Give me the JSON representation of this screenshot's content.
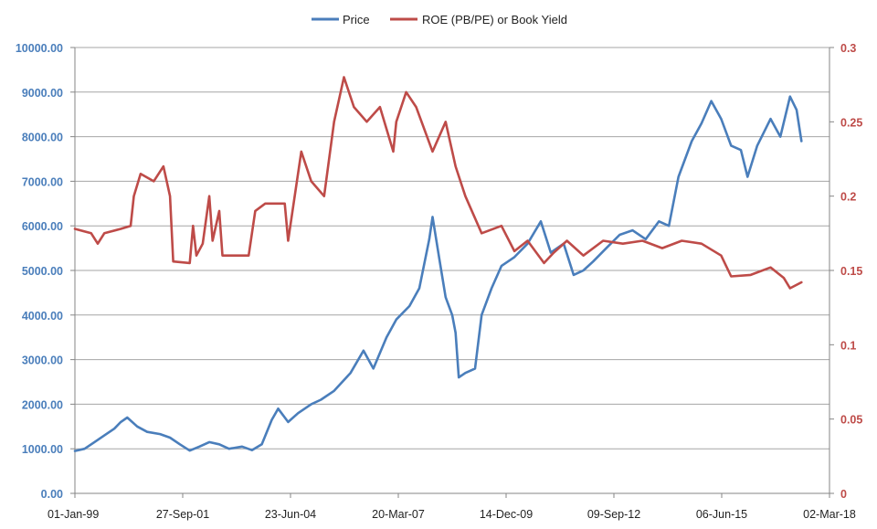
{
  "chart_data": {
    "type": "line",
    "title": "",
    "xlabel": "",
    "ylabel": "",
    "grid": true,
    "legend_position": "top",
    "x_range": [
      "1999-01-01",
      "2018-03-02"
    ],
    "x_tick_labels": [
      "01-Jan-99",
      "27-Sep-01",
      "23-Jun-04",
      "20-Mar-07",
      "14-Dec-09",
      "09-Sep-12",
      "06-Jun-15",
      "02-Mar-18"
    ],
    "y_left": {
      "range": [
        0,
        10000
      ],
      "tick_labels": [
        "0.00",
        "1000.00",
        "2000.00",
        "3000.00",
        "4000.00",
        "5000.00",
        "6000.00",
        "7000.00",
        "8000.00",
        "9000.00",
        "10000.00"
      ],
      "color": "#4a7ebb"
    },
    "y_right": {
      "range": [
        0,
        0.3
      ],
      "tick_labels": [
        "0",
        "0.05",
        "0.1",
        "0.15",
        "0.2",
        "0.25",
        "0.3"
      ],
      "color": "#be4b48"
    },
    "series": [
      {
        "name": "Price",
        "axis": "left",
        "color": "#4a7ebb",
        "points": [
          [
            "1999-01-01",
            950
          ],
          [
            "1999-04-01",
            1000
          ],
          [
            "1999-07-01",
            1150
          ],
          [
            "1999-10-01",
            1300
          ],
          [
            "2000-01-01",
            1450
          ],
          [
            "2000-03-01",
            1600
          ],
          [
            "2000-05-01",
            1700
          ],
          [
            "2000-08-01",
            1500
          ],
          [
            "2000-11-01",
            1380
          ],
          [
            "2001-03-01",
            1330
          ],
          [
            "2001-06-01",
            1250
          ],
          [
            "2001-09-01",
            1100
          ],
          [
            "2001-12-01",
            960
          ],
          [
            "2002-03-01",
            1050
          ],
          [
            "2002-06-01",
            1150
          ],
          [
            "2002-09-01",
            1100
          ],
          [
            "2002-12-01",
            1000
          ],
          [
            "2003-04-01",
            1050
          ],
          [
            "2003-07-01",
            970
          ],
          [
            "2003-10-01",
            1100
          ],
          [
            "2004-01-01",
            1650
          ],
          [
            "2004-03-01",
            1900
          ],
          [
            "2004-06-01",
            1600
          ],
          [
            "2004-09-01",
            1800
          ],
          [
            "2005-01-01",
            2000
          ],
          [
            "2005-04-01",
            2100
          ],
          [
            "2005-08-01",
            2300
          ],
          [
            "2006-01-01",
            2700
          ],
          [
            "2006-05-01",
            3200
          ],
          [
            "2006-08-01",
            2800
          ],
          [
            "2006-12-01",
            3500
          ],
          [
            "2007-03-01",
            3900
          ],
          [
            "2007-07-01",
            4200
          ],
          [
            "2007-10-01",
            4600
          ],
          [
            "2008-01-01",
            5700
          ],
          [
            "2008-02-01",
            6200
          ],
          [
            "2008-04-01",
            5300
          ],
          [
            "2008-06-01",
            4400
          ],
          [
            "2008-08-01",
            4000
          ],
          [
            "2008-09-01",
            3600
          ],
          [
            "2008-10-01",
            2600
          ],
          [
            "2008-12-01",
            2700
          ],
          [
            "2009-03-01",
            2800
          ],
          [
            "2009-05-01",
            4000
          ],
          [
            "2009-08-01",
            4600
          ],
          [
            "2009-11-01",
            5100
          ],
          [
            "2010-03-01",
            5300
          ],
          [
            "2010-07-01",
            5600
          ],
          [
            "2010-11-01",
            6100
          ],
          [
            "2011-02-01",
            5400
          ],
          [
            "2011-06-01",
            5600
          ],
          [
            "2011-09-01",
            4900
          ],
          [
            "2011-12-01",
            5000
          ],
          [
            "2012-03-01",
            5200
          ],
          [
            "2012-07-01",
            5500
          ],
          [
            "2012-11-01",
            5800
          ],
          [
            "2013-03-01",
            5900
          ],
          [
            "2013-07-01",
            5700
          ],
          [
            "2013-11-01",
            6100
          ],
          [
            "2014-02-01",
            6000
          ],
          [
            "2014-05-01",
            7100
          ],
          [
            "2014-09-01",
            7900
          ],
          [
            "2014-12-01",
            8300
          ],
          [
            "2015-03-01",
            8800
          ],
          [
            "2015-06-01",
            8400
          ],
          [
            "2015-09-01",
            7800
          ],
          [
            "2015-12-01",
            7700
          ],
          [
            "2016-02-01",
            7100
          ],
          [
            "2016-05-01",
            7800
          ],
          [
            "2016-09-01",
            8400
          ],
          [
            "2016-12-01",
            8000
          ],
          [
            "2017-03-01",
            8900
          ],
          [
            "2017-05-01",
            8600
          ],
          [
            "2017-06-15",
            7900
          ]
        ]
      },
      {
        "name": "ROE (PB/PE) or Book Yield",
        "axis": "right",
        "color": "#be4b48",
        "points": [
          [
            "1999-01-01",
            0.178
          ],
          [
            "1999-06-01",
            0.175
          ],
          [
            "1999-08-01",
            0.168
          ],
          [
            "1999-10-01",
            0.175
          ],
          [
            "2000-03-01",
            0.178
          ],
          [
            "2000-06-01",
            0.18
          ],
          [
            "2000-07-01",
            0.2
          ],
          [
            "2000-09-01",
            0.215
          ],
          [
            "2001-01-01",
            0.21
          ],
          [
            "2001-04-01",
            0.22
          ],
          [
            "2001-06-01",
            0.2
          ],
          [
            "2001-07-01",
            0.156
          ],
          [
            "2001-12-01",
            0.155
          ],
          [
            "2002-01-01",
            0.18
          ],
          [
            "2002-02-01",
            0.16
          ],
          [
            "2002-04-01",
            0.168
          ],
          [
            "2002-06-01",
            0.2
          ],
          [
            "2002-07-01",
            0.17
          ],
          [
            "2002-09-01",
            0.19
          ],
          [
            "2002-10-01",
            0.16
          ],
          [
            "2003-06-01",
            0.16
          ],
          [
            "2003-08-01",
            0.19
          ],
          [
            "2003-11-01",
            0.195
          ],
          [
            "2004-05-01",
            0.195
          ],
          [
            "2004-06-01",
            0.17
          ],
          [
            "2004-08-01",
            0.2
          ],
          [
            "2004-10-01",
            0.23
          ],
          [
            "2005-01-01",
            0.21
          ],
          [
            "2005-05-01",
            0.2
          ],
          [
            "2005-08-01",
            0.25
          ],
          [
            "2005-11-01",
            0.28
          ],
          [
            "2006-02-01",
            0.26
          ],
          [
            "2006-06-01",
            0.25
          ],
          [
            "2006-10-01",
            0.26
          ],
          [
            "2007-02-01",
            0.23
          ],
          [
            "2007-03-01",
            0.25
          ],
          [
            "2007-06-01",
            0.27
          ],
          [
            "2007-09-01",
            0.26
          ],
          [
            "2008-02-01",
            0.23
          ],
          [
            "2008-06-01",
            0.25
          ],
          [
            "2008-09-01",
            0.22
          ],
          [
            "2008-12-01",
            0.2
          ],
          [
            "2009-05-01",
            0.175
          ],
          [
            "2009-11-01",
            0.18
          ],
          [
            "2010-03-01",
            0.163
          ],
          [
            "2010-07-01",
            0.17
          ],
          [
            "2010-12-01",
            0.155
          ],
          [
            "2011-03-01",
            0.162
          ],
          [
            "2011-07-01",
            0.17
          ],
          [
            "2011-12-01",
            0.16
          ],
          [
            "2012-06-01",
            0.17
          ],
          [
            "2012-12-01",
            0.168
          ],
          [
            "2013-06-01",
            0.17
          ],
          [
            "2013-12-01",
            0.165
          ],
          [
            "2014-06-01",
            0.17
          ],
          [
            "2014-12-01",
            0.168
          ],
          [
            "2015-06-01",
            0.16
          ],
          [
            "2015-09-01",
            0.146
          ],
          [
            "2016-03-01",
            0.147
          ],
          [
            "2016-09-01",
            0.152
          ],
          [
            "2017-01-01",
            0.145
          ],
          [
            "2017-03-01",
            0.138
          ],
          [
            "2017-06-15",
            0.142
          ]
        ]
      }
    ]
  }
}
